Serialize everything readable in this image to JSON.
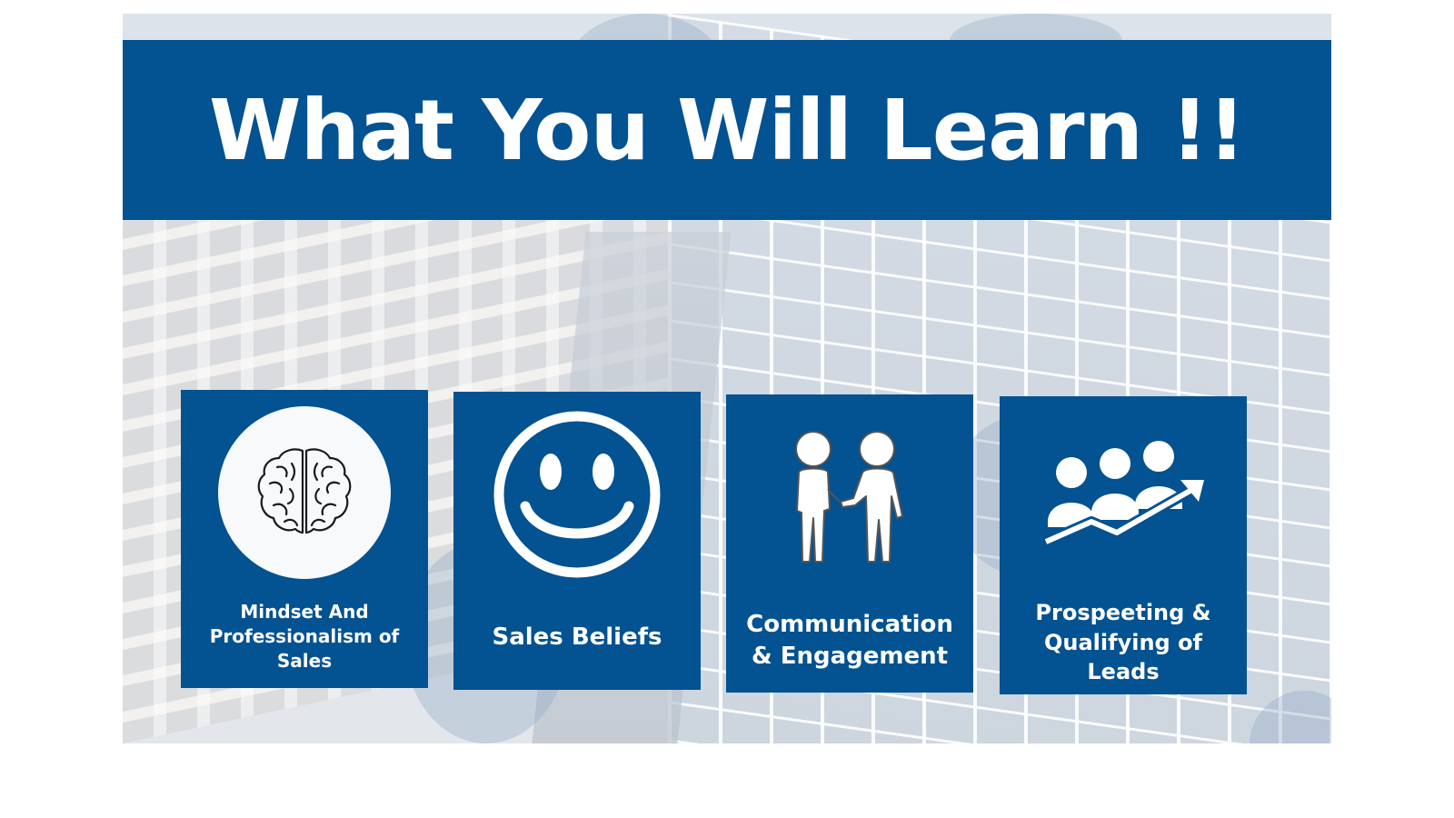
{
  "banner": {
    "title": "What You Will Learn !!"
  },
  "cards": [
    {
      "label": "Mindset And Professionalism of Sales",
      "icon": "brain-icon"
    },
    {
      "label": "Sales Beliefs",
      "icon": "smiley-face-icon"
    },
    {
      "label": "Communication & Engagement",
      "icon": "two-people-talking-icon"
    },
    {
      "label": "Prospeeting & Qualifying of Leads",
      "icon": "group-growth-arrow-icon"
    }
  ],
  "colors": {
    "brand_blue": "#035291",
    "text": "#ffffff"
  }
}
